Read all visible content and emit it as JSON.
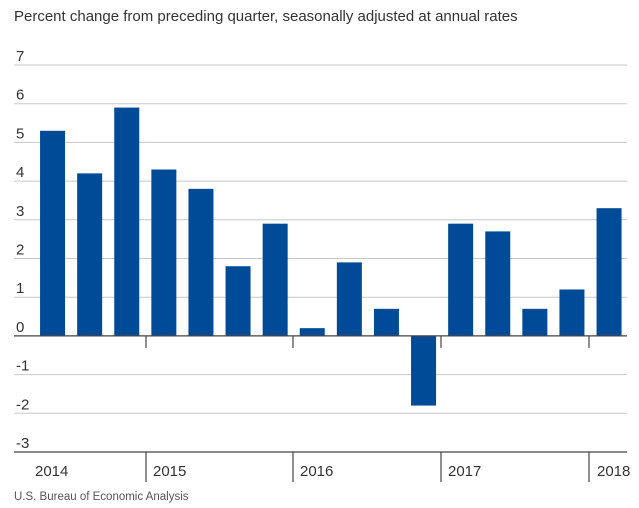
{
  "subtitle": "Percent change from preceding quarter, seasonally adjusted at annual rates",
  "source": "U.S. Bureau of Economic Analysis",
  "chart_data": {
    "type": "bar",
    "title": "",
    "xlabel": "",
    "ylabel": "",
    "ylim": [
      -3,
      7
    ],
    "yticks": [
      7,
      6,
      5,
      4,
      3,
      2,
      1,
      0,
      -1,
      -2,
      -3
    ],
    "grid": true,
    "bar_color": "#004b98",
    "categories": [
      "2014 Q1",
      "2014 Q2",
      "2014 Q3",
      "2014 Q4",
      "2015 Q1",
      "2015 Q2",
      "2015 Q3",
      "2015 Q4",
      "2016 Q1",
      "2016 Q2",
      "2016 Q3",
      "2016 Q4",
      "2017 Q1",
      "2017 Q2",
      "2017 Q3",
      "2017 Q4",
      "2018 Q1"
    ],
    "values": [
      5.3,
      4.2,
      5.9,
      4.3,
      3.8,
      1.8,
      2.9,
      0.2,
      1.9,
      0.7,
      -1.8,
      2.9,
      2.7,
      0.7,
      1.2,
      3.3,
      null
    ],
    "year_labels": [
      "2014",
      "2015",
      "2016",
      "2017",
      "2018"
    ]
  }
}
